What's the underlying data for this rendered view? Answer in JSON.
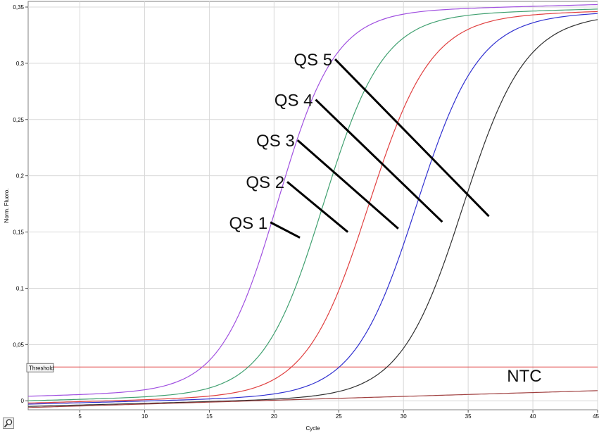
{
  "chart_data": {
    "type": "line",
    "xlabel": "Cycle",
    "ylabel": "Norm. Fluoro.",
    "xlim": [
      1,
      45
    ],
    "ylim": [
      -0.008,
      0.355
    ],
    "x_ticks": [
      "5",
      "10",
      "15",
      "20",
      "25",
      "30",
      "35",
      "40",
      "45"
    ],
    "y_ticks": [
      "0",
      "0,05",
      "0,1",
      "0,15",
      "0,2",
      "0,25",
      "0,3",
      "0,35"
    ],
    "grid": true,
    "series": [
      {
        "name": "QS 5",
        "color": "#a050e0",
        "plateau": 0.335,
        "midpoint": 20.3,
        "slope": 2.2,
        "baseline": 0.004
      },
      {
        "name": "QS 4",
        "color": "#40a070",
        "plateau": 0.335,
        "midpoint": 23.8,
        "slope": 2.3,
        "baseline": 0.0
      },
      {
        "name": "QS 3",
        "color": "#e04040",
        "plateau": 0.335,
        "midpoint": 27.3,
        "slope": 2.4,
        "baseline": -0.002
      },
      {
        "name": "QS 2",
        "color": "#3030d0",
        "plateau": 0.335,
        "midpoint": 31.0,
        "slope": 2.4,
        "baseline": -0.003
      },
      {
        "name": "QS 1",
        "color": "#303030",
        "plateau": 0.335,
        "midpoint": 34.6,
        "slope": 2.4,
        "baseline": -0.005
      },
      {
        "name": "NTC",
        "color": "#a04040",
        "linear": true,
        "start": -0.006,
        "end": 0.009
      }
    ],
    "threshold": {
      "label": "Threshold",
      "value": 0.03,
      "color": "#e04040"
    },
    "annotations": [
      {
        "text": "QS 5",
        "x": 24.5,
        "y": 0.298,
        "line_to": [
          36.6,
          0.164
        ]
      },
      {
        "text": "QS 4",
        "x": 23.0,
        "y": 0.262,
        "line_to": [
          33.0,
          0.159
        ]
      },
      {
        "text": "QS 3",
        "x": 21.6,
        "y": 0.226,
        "line_to": [
          29.6,
          0.153
        ]
      },
      {
        "text": "QS 2",
        "x": 20.8,
        "y": 0.189,
        "line_to": [
          25.7,
          0.15
        ]
      },
      {
        "text": "QS 1",
        "x": 19.5,
        "y": 0.153,
        "line_to": [
          22.0,
          0.145
        ]
      },
      {
        "text": "NTC",
        "x": 38.0,
        "y": 0.017
      }
    ]
  },
  "toolbar": {
    "zoom_icon": "magnifier-icon"
  }
}
